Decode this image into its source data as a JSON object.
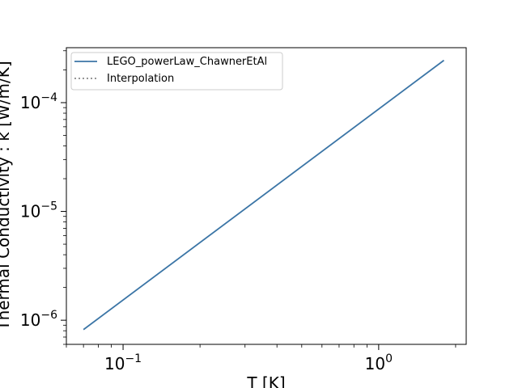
{
  "chart_data": {
    "type": "line",
    "title": "",
    "xlabel": "T [K]",
    "ylabel": "Thermal Conductivity : k [W/m/K]",
    "xscale": "log",
    "yscale": "log",
    "xlim": [
      0.06,
      2.2
    ],
    "ylim": [
      6e-07,
      0.00032
    ],
    "grid": false,
    "legend_placement": "upper-left",
    "x_ticks": [
      {
        "value": 0.1,
        "base": "10",
        "exp": "−1"
      },
      {
        "value": 1.0,
        "base": "10",
        "exp": "0"
      }
    ],
    "y_ticks": [
      {
        "value": 1e-06,
        "base": "10",
        "exp": "−6"
      },
      {
        "value": 1e-05,
        "base": "10",
        "exp": "−5"
      },
      {
        "value": 0.0001,
        "base": "10",
        "exp": "−4"
      }
    ],
    "series": [
      {
        "name": "LEGO_powerLaw_ChawnerEtAl",
        "style": "solid",
        "color": "#3b75a6",
        "x": [
          0.07,
          1.8
        ],
        "y": [
          8.2e-07,
          0.000245
        ]
      },
      {
        "name": "Interpolation",
        "style": "dotted",
        "color": "#888888",
        "x": [],
        "y": []
      }
    ]
  }
}
